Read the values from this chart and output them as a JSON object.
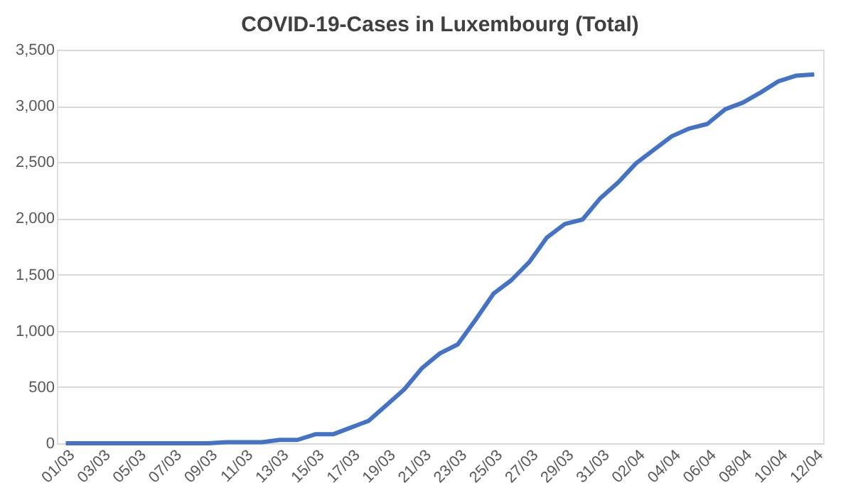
{
  "chart_data": {
    "type": "line",
    "title": "COVID-19-Cases in Luxembourg (Total)",
    "categories": [
      "01/03",
      null,
      "03/03",
      null,
      "05/03",
      null,
      "07/03",
      null,
      "09/03",
      null,
      "11/03",
      null,
      "13/03",
      null,
      "15/03",
      null,
      "17/03",
      null,
      "19/03",
      null,
      "21/03",
      null,
      "23/03",
      null,
      "25/03",
      null,
      "27/03",
      null,
      "29/03",
      null,
      "31/03",
      null,
      "02/04",
      null,
      "04/04",
      null,
      "06/04",
      null,
      "08/04",
      null,
      "10/04",
      null,
      "12/04"
    ],
    "series": [
      {
        "color": "#4472c4",
        "values": [
          0,
          0,
          0,
          0,
          0,
          0,
          0,
          0,
          0,
          10,
          10,
          10,
          30,
          30,
          80,
          80,
          140,
          200,
          340,
          480,
          670,
          800,
          880,
          1100,
          1330,
          1450,
          1610,
          1830,
          1950,
          1990,
          2180,
          2320,
          2490,
          2610,
          2730,
          2800,
          2840,
          2970,
          3030,
          3120,
          3220,
          3270,
          3280
        ]
      }
    ],
    "ylim": [
      0,
      3500
    ],
    "yticks": [
      {
        "value": 0,
        "label": "0"
      },
      {
        "value": 500,
        "label": "500"
      },
      {
        "value": 1000,
        "label": "1,000"
      },
      {
        "value": 1500,
        "label": "1,500"
      },
      {
        "value": 2000,
        "label": "2,000"
      },
      {
        "value": 2500,
        "label": "2,500"
      },
      {
        "value": 3000,
        "label": "3,000"
      },
      {
        "value": 3500,
        "label": "3,500"
      }
    ],
    "grid": "y",
    "legend": false,
    "marker": "none",
    "line_style": "solid"
  }
}
